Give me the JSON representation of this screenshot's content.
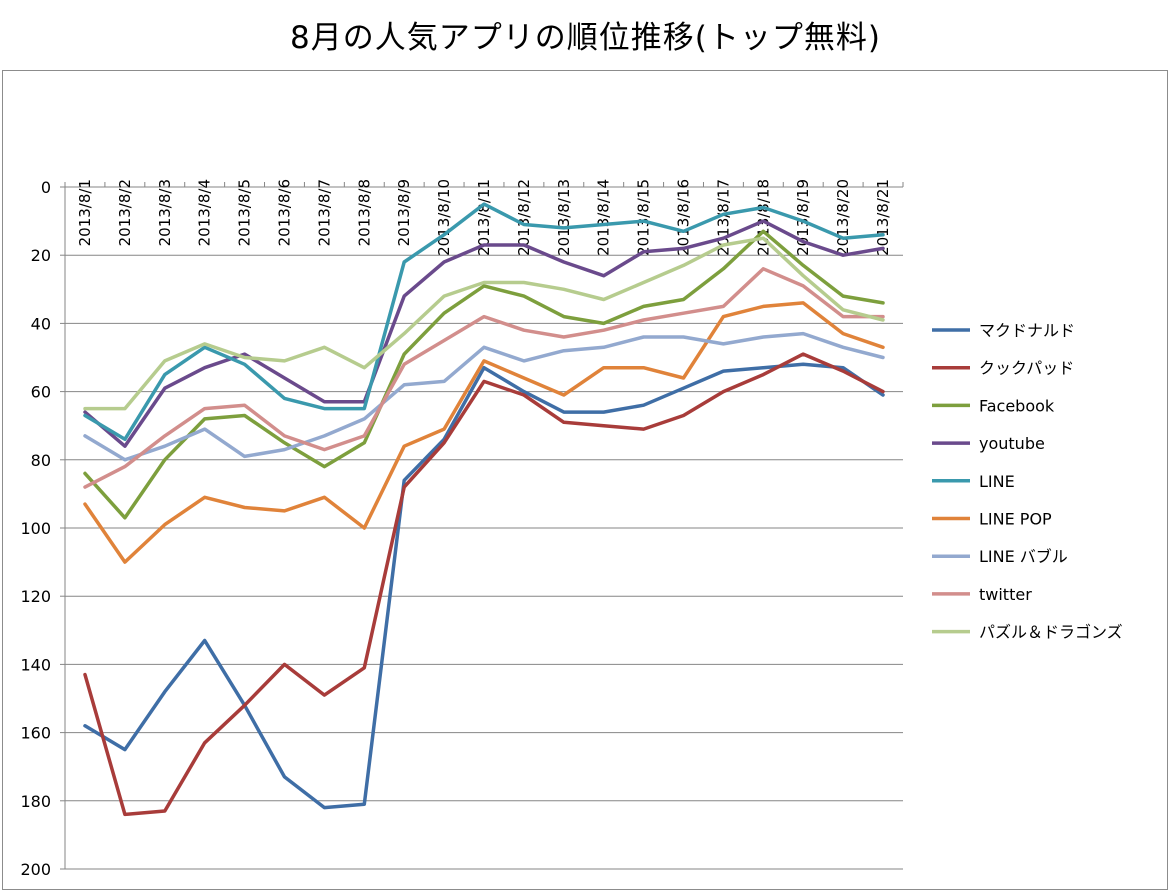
{
  "title": "8月の人気アプリの順位推移(トップ無料)",
  "chart_data": {
    "type": "line",
    "title": "8月の人気アプリの順位推移(トップ無料)",
    "xlabel": "",
    "ylabel": "",
    "ylim": [
      0,
      200
    ],
    "y_reversed": true,
    "y_ticks": [
      0,
      20,
      40,
      60,
      80,
      100,
      120,
      140,
      160,
      180,
      200
    ],
    "grid": "horizontal",
    "legend_position": "right",
    "categories": [
      "2013/8/1",
      "2013/8/2",
      "2013/8/3",
      "2013/8/4",
      "2013/8/5",
      "2013/8/6",
      "2013/8/7",
      "2013/8/8",
      "2013/8/9",
      "2013/8/10",
      "2013/8/11",
      "2013/8/12",
      "2013/8/13",
      "2013/8/14",
      "2013/8/15",
      "2013/8/16",
      "2013/8/17",
      "2013/8/18",
      "2013/8/19",
      "2013/8/20",
      "2013/8/21"
    ],
    "series": [
      {
        "name": "マクドナルド",
        "color": "#3f6ea6",
        "values": [
          158,
          165,
          148,
          133,
          152,
          173,
          182,
          181,
          86,
          74,
          53,
          60,
          66,
          66,
          64,
          59,
          54,
          53,
          52,
          53,
          61
        ]
      },
      {
        "name": "クックパッド",
        "color": "#a83c3a",
        "values": [
          143,
          184,
          183,
          163,
          152,
          140,
          149,
          141,
          88,
          75,
          57,
          61,
          69,
          70,
          71,
          67,
          60,
          55,
          49,
          54,
          60
        ]
      },
      {
        "name": "Facebook",
        "color": "#7d9f3d",
        "values": [
          84,
          97,
          80,
          68,
          67,
          75,
          82,
          75,
          49,
          37,
          29,
          32,
          38,
          40,
          35,
          33,
          24,
          13,
          23,
          32,
          34
        ]
      },
      {
        "name": "youtube",
        "color": "#6a4a8c",
        "values": [
          66,
          76,
          59,
          53,
          49,
          56,
          63,
          63,
          32,
          22,
          17,
          17,
          22,
          26,
          19,
          18,
          15,
          10,
          16,
          20,
          18
        ]
      },
      {
        "name": "LINE",
        "color": "#3a99ad",
        "values": [
          67,
          74,
          55,
          47,
          52,
          62,
          65,
          65,
          22,
          14,
          5,
          11,
          12,
          11,
          10,
          13,
          8,
          6,
          10,
          15,
          14
        ]
      },
      {
        "name": "LINE POP",
        "color": "#e0833a",
        "values": [
          93,
          110,
          99,
          91,
          94,
          95,
          91,
          100,
          76,
          71,
          51,
          56,
          61,
          53,
          53,
          56,
          38,
          35,
          34,
          43,
          47
        ]
      },
      {
        "name": "LINE バブル",
        "color": "#93a9cf",
        "values": [
          73,
          80,
          76,
          71,
          79,
          77,
          73,
          68,
          58,
          57,
          47,
          51,
          48,
          47,
          44,
          44,
          46,
          44,
          43,
          47,
          50
        ]
      },
      {
        "name": "twitter",
        "color": "#d28e8c",
        "values": [
          88,
          82,
          73,
          65,
          64,
          73,
          77,
          73,
          52,
          45,
          38,
          42,
          44,
          42,
          39,
          37,
          35,
          24,
          29,
          38,
          38
        ]
      },
      {
        "name": "パズル＆ドラゴンズ",
        "color": "#b6cc8e",
        "values": [
          65,
          65,
          51,
          46,
          50,
          51,
          47,
          53,
          43,
          32,
          28,
          28,
          30,
          33,
          28,
          23,
          17,
          15,
          26,
          36,
          39
        ]
      }
    ]
  }
}
